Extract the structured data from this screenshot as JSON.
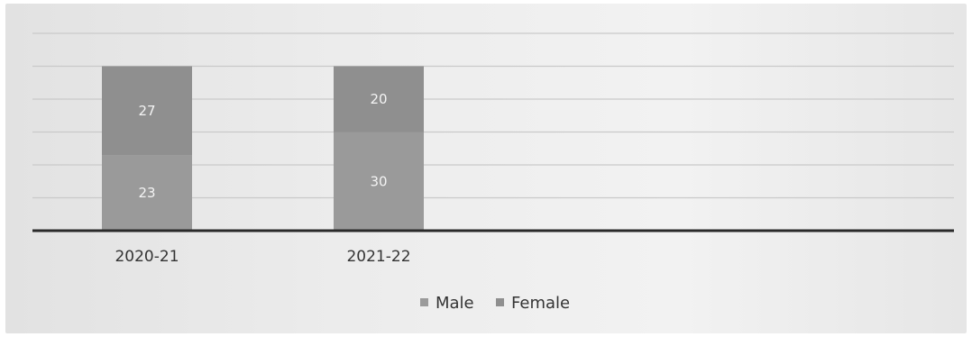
{
  "chart_data": {
    "type": "bar",
    "stacked": true,
    "categories": [
      "2020-21",
      "2021-22"
    ],
    "series": [
      {
        "name": "Male",
        "values": [
          23,
          30
        ],
        "color": "#9a9a9a"
      },
      {
        "name": "Female",
        "values": [
          27,
          20
        ],
        "color": "#8f8f8f"
      }
    ],
    "ylim": [
      0,
      60
    ],
    "grid": true,
    "legend": "bottom-center",
    "title": "",
    "xlabel": "",
    "ylabel": ""
  }
}
